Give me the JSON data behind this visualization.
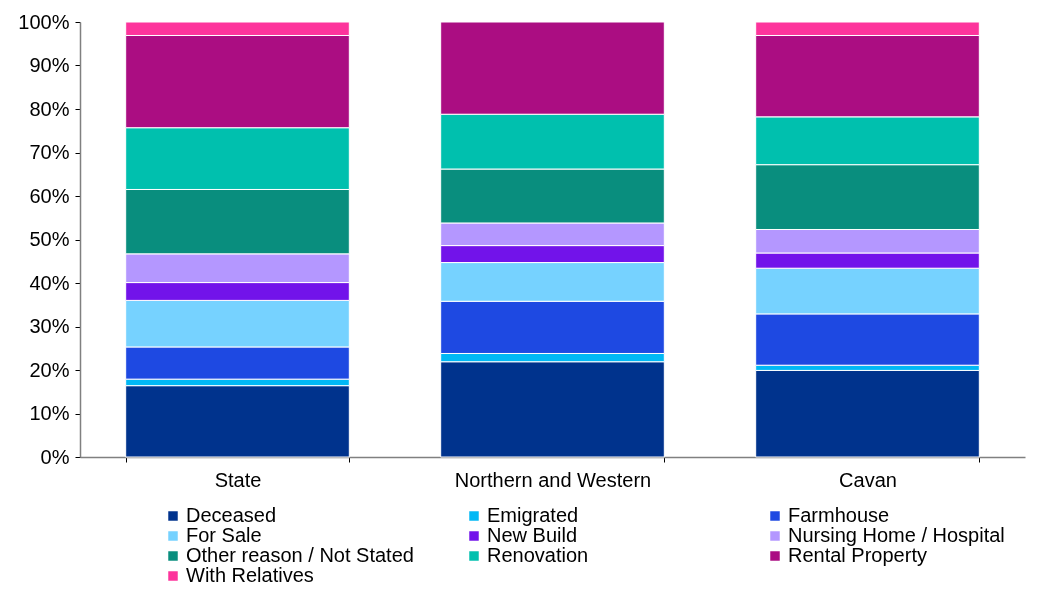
{
  "chart_data": {
    "type": "bar",
    "stacked": true,
    "categories": [
      "State",
      "Northern and Western",
      "Cavan"
    ],
    "ylim": [
      0,
      100
    ],
    "yticks": [
      {
        "value": 0,
        "label": "0%"
      },
      {
        "value": 10,
        "label": "10%"
      },
      {
        "value": 20,
        "label": "20%"
      },
      {
        "value": 30,
        "label": "30%"
      },
      {
        "value": 40,
        "label": "40%"
      },
      {
        "value": 50,
        "label": "50%"
      },
      {
        "value": 60,
        "label": "60%"
      },
      {
        "value": 70,
        "label": "70%"
      },
      {
        "value": 80,
        "label": "80%"
      },
      {
        "value": 90,
        "label": "90%"
      },
      {
        "value": 100,
        "label": "100%"
      }
    ],
    "grid": false,
    "legend": "bottom",
    "series": [
      {
        "name": "Deceased",
        "color": "#00338d",
        "values": [
          16.4,
          21.9,
          19.9
        ]
      },
      {
        "name": "Emigrated",
        "color": "#00b8f5",
        "values": [
          1.5,
          1.9,
          1.2
        ]
      },
      {
        "name": "Farmhouse",
        "color": "#1e49e2",
        "values": [
          7.4,
          12.0,
          11.8
        ]
      },
      {
        "name": "For Sale",
        "color": "#76d2ff",
        "values": [
          10.7,
          8.9,
          10.5
        ]
      },
      {
        "name": "New Build",
        "color": "#7213ea",
        "values": [
          4.1,
          3.9,
          3.5
        ]
      },
      {
        "name": "Nursing Home / Hospital",
        "color": "#b497ff",
        "values": [
          6.6,
          5.2,
          5.4
        ]
      },
      {
        "name": "Other reason / Not Stated",
        "color": "#098e7e",
        "values": [
          14.8,
          12.4,
          14.9
        ]
      },
      {
        "name": "Renovation",
        "color": "#00c0ae",
        "values": [
          14.2,
          12.6,
          11.0
        ]
      },
      {
        "name": "Rental Property",
        "color": "#ab0d82",
        "values": [
          21.2,
          21.2,
          18.7
        ]
      },
      {
        "name": "With Relatives",
        "color": "#fd349c",
        "values": [
          3.1,
          null,
          3.1
        ]
      }
    ]
  }
}
